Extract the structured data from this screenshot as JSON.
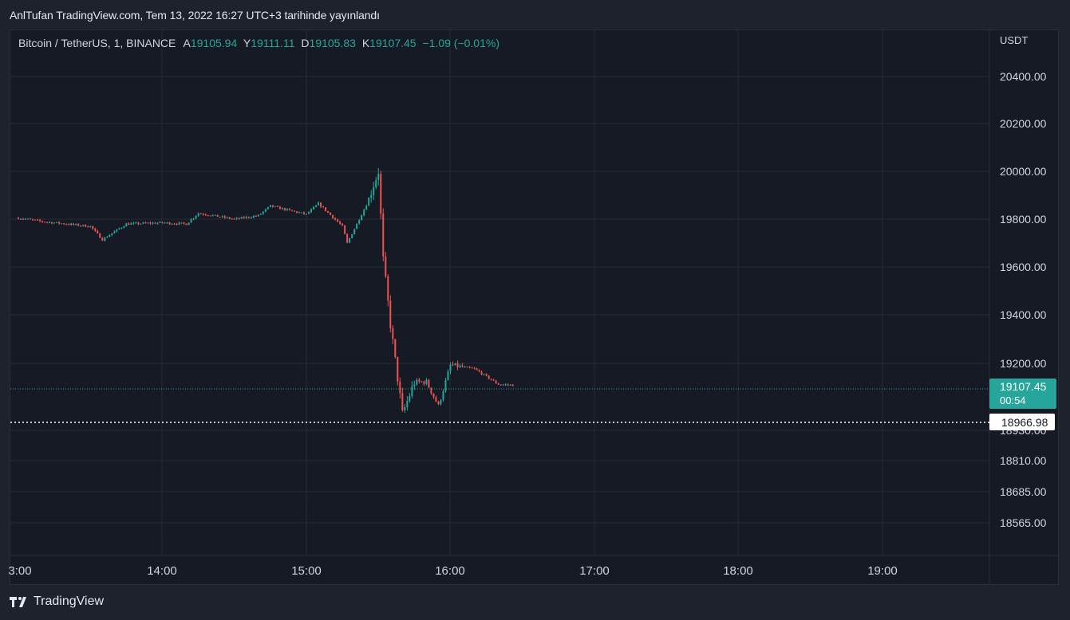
{
  "header": {
    "publisher_line": "AnlTufan TradingView.com, Tem 13, 2022 16:27 UTC+3 tarihinde yayınlandı"
  },
  "legend": {
    "symbol": "Bitcoin / TetherUS, 1, BINANCE",
    "open_label": "A",
    "open": "19105.94",
    "high_label": "Y",
    "high": "19111.11",
    "low_label": "D",
    "low": "19105.83",
    "close_label": "K",
    "close": "19107.45",
    "change": "−1.09 (−0.01%)"
  },
  "price_axis": {
    "currency": "USDT",
    "ticks": [
      "20400.00",
      "20200.00",
      "20000.00",
      "19800.00",
      "19600.00",
      "19400.00",
      "19200.00",
      "18930.00",
      "18810.00",
      "18685.00",
      "18565.00"
    ],
    "last_price": "19107.45",
    "countdown": "00:54",
    "marker_price": "18966.98"
  },
  "time_axis": {
    "ticks": [
      "3:00",
      "14:00",
      "15:00",
      "16:00",
      "17:00",
      "18:00",
      "19:00"
    ]
  },
  "footer": {
    "brand": "TradingView"
  },
  "colors": {
    "up": "#26a69a",
    "down": "#ef5350",
    "background": "#161a25",
    "grid": "#262a35",
    "badge": "#26a69a"
  },
  "chart_data": {
    "type": "candlestick",
    "symbol": "BTC/USDT",
    "interval": "1m",
    "x_range": [
      "13:00",
      "19:45"
    ],
    "y_unit": "USDT",
    "series": [
      {
        "time": "13:00",
        "price": 19805
      },
      {
        "time": "13:10",
        "price": 19790
      },
      {
        "time": "13:20",
        "price": 19780
      },
      {
        "time": "13:30",
        "price": 19770
      },
      {
        "time": "13:35",
        "price": 19715
      },
      {
        "time": "13:45",
        "price": 19780
      },
      {
        "time": "14:00",
        "price": 19785
      },
      {
        "time": "14:10",
        "price": 19780
      },
      {
        "time": "14:15",
        "price": 19825
      },
      {
        "time": "14:30",
        "price": 19800
      },
      {
        "time": "14:40",
        "price": 19815
      },
      {
        "time": "14:45",
        "price": 19855
      },
      {
        "time": "15:00",
        "price": 19820
      },
      {
        "time": "15:05",
        "price": 19865
      },
      {
        "time": "15:15",
        "price": 19770
      },
      {
        "time": "15:17",
        "price": 19700
      },
      {
        "time": "15:25",
        "price": 19860
      },
      {
        "time": "15:30",
        "price": 20000
      },
      {
        "time": "15:32",
        "price": 19630
      },
      {
        "time": "15:35",
        "price": 19360
      },
      {
        "time": "15:40",
        "price": 18985
      },
      {
        "time": "15:45",
        "price": 19120
      },
      {
        "time": "15:50",
        "price": 19120
      },
      {
        "time": "15:55",
        "price": 19020
      },
      {
        "time": "16:00",
        "price": 19190
      },
      {
        "time": "16:10",
        "price": 19175
      },
      {
        "time": "16:20",
        "price": 19110
      },
      {
        "time": "16:26",
        "price": 19107
      }
    ]
  }
}
